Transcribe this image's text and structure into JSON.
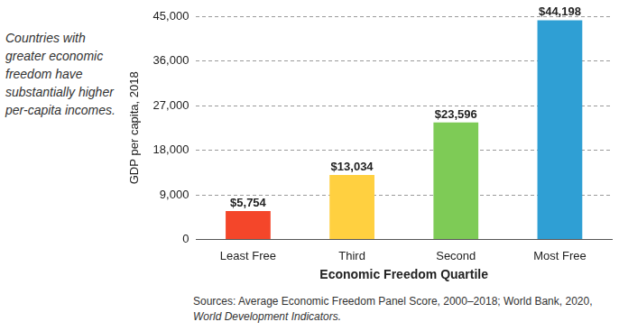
{
  "chart_data": {
    "type": "bar",
    "annotation": "Countries with greater economic freedom have substantially higher per-capita incomes.",
    "x_label": "Economic Freedom Quartile",
    "y_label": "GDP per capita, 2018",
    "categories": [
      "Least Free",
      "Third",
      "Second",
      "Most Free"
    ],
    "values": [
      5754,
      13034,
      23596,
      44198
    ],
    "value_labels": [
      "$5,754",
      "$13,034",
      "$23,596",
      "$44,198"
    ],
    "colors": [
      "#f4462a",
      "#ffd040",
      "#7ecb56",
      "#2f9fd4"
    ],
    "ylim": [
      0,
      45000
    ],
    "yticks": [
      0,
      {
        "value": 9000,
        "label": "9,000"
      },
      {
        "value": 18000,
        "label": "18,000"
      },
      {
        "value": 27000,
        "label": "27,000"
      },
      {
        "value": 36000,
        "label": "36,000"
      },
      {
        "value": 45000,
        "label": "45,000"
      }
    ],
    "grid": true,
    "data_labels": true,
    "source": "Sources: Average Economic Freedom Panel Score, 2000–2018; World Bank, 2020,",
    "source_italic": "World Development Indicators."
  }
}
